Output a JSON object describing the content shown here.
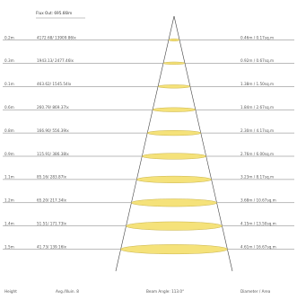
{
  "header": {
    "flux_out": "Flux Out: 695.66lm"
  },
  "footer": {
    "height": "Height",
    "avg_illum": "Avg./Illuin. 8",
    "beam_angle": "Beam Angle: 113.0°",
    "diameter": "Diameter / Area"
  },
  "rows": [
    {
      "height": "0.2m",
      "illum": "4172.68/ 13909.86lx",
      "diam": "0.46m / 0.17sq.m"
    },
    {
      "height": "0.3m",
      "illum": "1943.13/ 2477.46lx",
      "diam": "0.92m / 0.67sq.m"
    },
    {
      "height": "0.1m",
      "illum": "463.62/ 1545.54lx",
      "diam": "1.38m / 1.50sq.m"
    },
    {
      "height": "0.6m",
      "illum": "260.79/ 869.37lx",
      "diam": "1.84m / 2.67sq.m"
    },
    {
      "height": "0.8m",
      "illum": "166.90/ 556.39lx",
      "diam": "2.30m / 4.17sq.m"
    },
    {
      "height": "0.9m",
      "illum": "115.91/ 386.38lx",
      "diam": "2.76m / 6.00sq.m"
    },
    {
      "height": "1.1m",
      "illum": "85.16/ 283.87lx",
      "diam": "3.23m / 8.17sq.m"
    },
    {
      "height": "1.2m",
      "illum": "65.20/ 217.34lx",
      "diam": "3.68m / 10.67sq.m"
    },
    {
      "height": "1.4m",
      "illum": "51.51/ 171.73lx",
      "diam": "4.15m / 13.50sq.m"
    },
    {
      "height": "1.5m",
      "illum": "41.73/ 139.16lx",
      "diam": "4.61m / 16.67sq.m"
    }
  ],
  "colors": {
    "ellipse_fill": "#f5e27a",
    "ellipse_stroke": "#c9b34a",
    "line": "#777777",
    "cone": "#444444"
  }
}
